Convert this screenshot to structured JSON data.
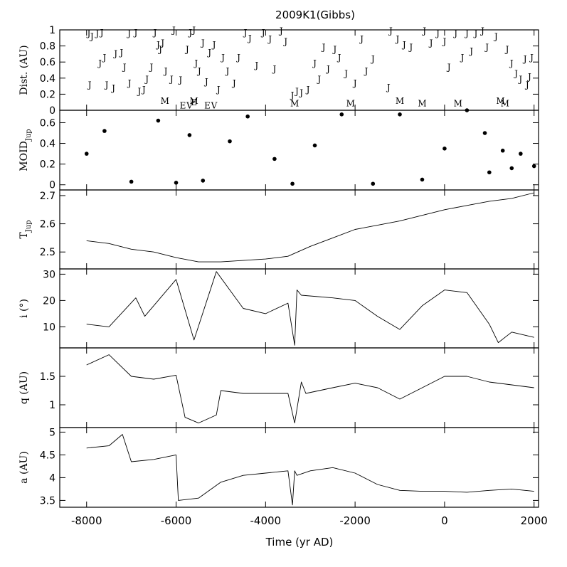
{
  "chart_data": {
    "type": "line",
    "title": "2009K1(Gibbs)",
    "xlabel": "Time (yr AD)",
    "xlim": [
      -8600,
      2100
    ],
    "x_ticks": [
      -8000,
      -6000,
      -4000,
      -2000,
      0,
      2000
    ],
    "panels": [
      {
        "id": "dist",
        "type": "scatter",
        "ylabel": "Dist. (AU)",
        "ylim": [
          0,
          1
        ],
        "y_ticks": [
          "0",
          "0.2",
          "0.4",
          "0.6",
          "0.8",
          "1"
        ],
        "y_tick_values": [
          0,
          0.2,
          0.4,
          0.6,
          0.8,
          1
        ],
        "encounters": [
          {
            "x": -7950,
            "y": 0.92,
            "label": "J"
          },
          {
            "x": -7880,
            "y": 0.88,
            "label": "J"
          },
          {
            "x": -7760,
            "y": 0.92,
            "label": "J"
          },
          {
            "x": -7660,
            "y": 0.93,
            "label": "J"
          },
          {
            "x": -7930,
            "y": 0.28,
            "label": "J"
          },
          {
            "x": -7600,
            "y": 0.62,
            "label": "J"
          },
          {
            "x": -7700,
            "y": 0.55,
            "label": "J"
          },
          {
            "x": -7550,
            "y": 0.28,
            "label": "J"
          },
          {
            "x": -7400,
            "y": 0.24,
            "label": "J"
          },
          {
            "x": -7350,
            "y": 0.67,
            "label": "J"
          },
          {
            "x": -7220,
            "y": 0.68,
            "label": "J"
          },
          {
            "x": -7150,
            "y": 0.5,
            "label": "J"
          },
          {
            "x": -7050,
            "y": 0.92,
            "label": "J"
          },
          {
            "x": -6900,
            "y": 0.93,
            "label": "J"
          },
          {
            "x": -7040,
            "y": 0.3,
            "label": "J"
          },
          {
            "x": -6820,
            "y": 0.2,
            "label": "J"
          },
          {
            "x": -6720,
            "y": 0.22,
            "label": "J"
          },
          {
            "x": -6650,
            "y": 0.35,
            "label": "J"
          },
          {
            "x": -6550,
            "y": 0.5,
            "label": "J"
          },
          {
            "x": -6470,
            "y": 0.93,
            "label": "J"
          },
          {
            "x": -6400,
            "y": 0.78,
            "label": "J"
          },
          {
            "x": -6350,
            "y": 0.72,
            "label": "J"
          },
          {
            "x": -6300,
            "y": 0.8,
            "label": "J"
          },
          {
            "x": -6230,
            "y": 0.45,
            "label": "J"
          },
          {
            "x": -6100,
            "y": 0.35,
            "label": "J"
          },
          {
            "x": -6250,
            "y": 0.08,
            "label": "M"
          },
          {
            "x": -6050,
            "y": 0.96,
            "label": "J"
          },
          {
            "x": -5900,
            "y": 0.34,
            "label": "J"
          },
          {
            "x": -5750,
            "y": 0.72,
            "label": "J"
          },
          {
            "x": -5680,
            "y": 0.93,
            "label": "J"
          },
          {
            "x": -5600,
            "y": 0.96,
            "label": "J"
          },
          {
            "x": -5550,
            "y": 0.55,
            "label": "J"
          },
          {
            "x": -5480,
            "y": 0.45,
            "label": "J"
          },
          {
            "x": -5400,
            "y": 0.8,
            "label": "J"
          },
          {
            "x": -5320,
            "y": 0.32,
            "label": "J"
          },
          {
            "x": -5250,
            "y": 0.68,
            "label": "J"
          },
          {
            "x": -5150,
            "y": 0.78,
            "label": "J"
          },
          {
            "x": -5050,
            "y": 0.22,
            "label": "J"
          },
          {
            "x": -4950,
            "y": 0.62,
            "label": "J"
          },
          {
            "x": -4850,
            "y": 0.45,
            "label": "J"
          },
          {
            "x": -5850,
            "y": 0.02,
            "label": "E"
          },
          {
            "x": -5700,
            "y": 0.02,
            "label": "V"
          },
          {
            "x": -5600,
            "y": 0.06,
            "label": "E"
          },
          {
            "x": -5600,
            "y": 0.08,
            "label": "M"
          },
          {
            "x": -5300,
            "y": 0.02,
            "label": "E"
          },
          {
            "x": -5150,
            "y": 0.02,
            "label": "V"
          },
          {
            "x": -4700,
            "y": 0.3,
            "label": "J"
          },
          {
            "x": -4600,
            "y": 0.62,
            "label": "J"
          },
          {
            "x": -4450,
            "y": 0.93,
            "label": "J"
          },
          {
            "x": -4350,
            "y": 0.86,
            "label": "J"
          },
          {
            "x": -4200,
            "y": 0.52,
            "label": "J"
          },
          {
            "x": -4050,
            "y": 0.93,
            "label": "J"
          },
          {
            "x": -3900,
            "y": 0.85,
            "label": "J"
          },
          {
            "x": -3800,
            "y": 0.48,
            "label": "J"
          },
          {
            "x": -3650,
            "y": 0.95,
            "label": "J"
          },
          {
            "x": -3550,
            "y": 0.82,
            "label": "J"
          },
          {
            "x": -3400,
            "y": 0.15,
            "label": "J"
          },
          {
            "x": -3350,
            "y": 0.05,
            "label": "M"
          },
          {
            "x": -3300,
            "y": 0.2,
            "label": "J"
          },
          {
            "x": -3200,
            "y": 0.18,
            "label": "J"
          },
          {
            "x": -3050,
            "y": 0.22,
            "label": "J"
          },
          {
            "x": -2900,
            "y": 0.55,
            "label": "J"
          },
          {
            "x": -2800,
            "y": 0.35,
            "label": "J"
          },
          {
            "x": -2700,
            "y": 0.75,
            "label": "J"
          },
          {
            "x": -2600,
            "y": 0.48,
            "label": "J"
          },
          {
            "x": -2450,
            "y": 0.72,
            "label": "J"
          },
          {
            "x": -2350,
            "y": 0.62,
            "label": "J"
          },
          {
            "x": -2200,
            "y": 0.42,
            "label": "J"
          },
          {
            "x": -2100,
            "y": 0.05,
            "label": "M"
          },
          {
            "x": -2000,
            "y": 0.3,
            "label": "J"
          },
          {
            "x": -1850,
            "y": 0.85,
            "label": "J"
          },
          {
            "x": -1750,
            "y": 0.45,
            "label": "J"
          },
          {
            "x": -1600,
            "y": 0.6,
            "label": "J"
          },
          {
            "x": -1250,
            "y": 0.25,
            "label": "J"
          },
          {
            "x": -1200,
            "y": 0.95,
            "label": "J"
          },
          {
            "x": -1050,
            "y": 0.85,
            "label": "J"
          },
          {
            "x": -900,
            "y": 0.78,
            "label": "J"
          },
          {
            "x": -750,
            "y": 0.75,
            "label": "J"
          },
          {
            "x": -1000,
            "y": 0.08,
            "label": "M"
          },
          {
            "x": -500,
            "y": 0.05,
            "label": "M"
          },
          {
            "x": -450,
            "y": 0.95,
            "label": "J"
          },
          {
            "x": -300,
            "y": 0.8,
            "label": "J"
          },
          {
            "x": -150,
            "y": 0.92,
            "label": "J"
          },
          {
            "x": 0,
            "y": 0.82,
            "label": "J"
          },
          {
            "x": 100,
            "y": 0.5,
            "label": "J"
          },
          {
            "x": 250,
            "y": 0.92,
            "label": "J"
          },
          {
            "x": 300,
            "y": 0.05,
            "label": "M"
          },
          {
            "x": 400,
            "y": 0.62,
            "label": "J"
          },
          {
            "x": 500,
            "y": 0.92,
            "label": "J"
          },
          {
            "x": 600,
            "y": 0.7,
            "label": "J"
          },
          {
            "x": 700,
            "y": 0.92,
            "label": "J"
          },
          {
            "x": 850,
            "y": 0.95,
            "label": "J"
          },
          {
            "x": 950,
            "y": 0.75,
            "label": "J"
          },
          {
            "x": 1150,
            "y": 0.88,
            "label": "J"
          },
          {
            "x": 1250,
            "y": 0.08,
            "label": "M"
          },
          {
            "x": 1350,
            "y": 0.05,
            "label": "M"
          },
          {
            "x": 1400,
            "y": 0.72,
            "label": "J"
          },
          {
            "x": 1500,
            "y": 0.55,
            "label": "J"
          },
          {
            "x": 1600,
            "y": 0.42,
            "label": "J"
          },
          {
            "x": 1700,
            "y": 0.35,
            "label": "J"
          },
          {
            "x": 1800,
            "y": 0.6,
            "label": "J"
          },
          {
            "x": 1900,
            "y": 0.38,
            "label": "J"
          },
          {
            "x": 1950,
            "y": 0.62,
            "label": "J"
          },
          {
            "x": 1850,
            "y": 0.28,
            "label": "J"
          }
        ]
      },
      {
        "id": "moid",
        "type": "scatter",
        "ylabel": "MOID",
        "ylabel_sub": "Jup",
        "ylim": [
          -0.05,
          0.72
        ],
        "y_ticks": [
          "0",
          "0.2",
          "0.4",
          "0.6"
        ],
        "y_tick_values": [
          0,
          0.2,
          0.4,
          0.6
        ],
        "x": [
          -8000,
          -7600,
          -7000,
          -6400,
          -6000,
          -5700,
          -5400,
          -4800,
          -4400,
          -3800,
          -3400,
          -2900,
          -2300,
          -1600,
          -1000,
          -500,
          0,
          500,
          900,
          1000,
          1300,
          1500,
          1700,
          2000
        ],
        "y": [
          0.3,
          0.52,
          0.03,
          0.62,
          0.02,
          0.48,
          0.04,
          0.42,
          0.66,
          0.25,
          0.01,
          0.38,
          0.68,
          0.01,
          0.68,
          0.05,
          0.35,
          0.72,
          0.5,
          0.12,
          0.33,
          0.16,
          0.3,
          0.18
        ]
      },
      {
        "id": "tjup",
        "type": "line",
        "ylabel": "T",
        "ylabel_sub": "Jup",
        "ylim": [
          2.44,
          2.72
        ],
        "y_ticks": [
          "2.5",
          "2.6",
          "2.7"
        ],
        "y_tick_values": [
          2.5,
          2.6,
          2.7
        ],
        "x": [
          -8000,
          -7500,
          -7000,
          -6500,
          -6000,
          -5500,
          -5000,
          -4500,
          -4000,
          -3500,
          -3000,
          -2500,
          -2000,
          -1500,
          -1000,
          -500,
          0,
          500,
          1000,
          1500,
          2000
        ],
        "y": [
          2.54,
          2.53,
          2.51,
          2.5,
          2.48,
          2.465,
          2.465,
          2.47,
          2.475,
          2.485,
          2.52,
          2.55,
          2.58,
          2.595,
          2.61,
          2.63,
          2.65,
          2.665,
          2.68,
          2.69,
          2.71
        ]
      },
      {
        "id": "incl",
        "type": "line",
        "ylabel": "i (°)",
        "ylim": [
          2,
          32
        ],
        "y_ticks": [
          "10",
          "20",
          "30"
        ],
        "y_tick_values": [
          10,
          20,
          30
        ],
        "x": [
          -8000,
          -7500,
          -6900,
          -6700,
          -6000,
          -5600,
          -5100,
          -4800,
          -4500,
          -4000,
          -3500,
          -3350,
          -3300,
          -3200,
          -2500,
          -2000,
          -1500,
          -1000,
          -500,
          0,
          500,
          1000,
          1200,
          1500,
          2000
        ],
        "y": [
          11,
          10,
          21,
          14,
          28,
          5,
          31,
          24,
          17,
          15,
          19,
          3,
          24,
          22,
          21,
          20,
          14,
          9,
          18,
          24,
          23,
          11,
          4,
          8,
          6
        ]
      },
      {
        "id": "q",
        "type": "line",
        "ylabel": "q (AU)",
        "ylim": [
          0.6,
          2.0
        ],
        "y_ticks": [
          "1",
          "1.5"
        ],
        "y_tick_values": [
          1,
          1.5
        ],
        "x": [
          -8000,
          -7500,
          -7000,
          -6500,
          -6000,
          -5800,
          -5500,
          -5100,
          -5000,
          -4500,
          -4000,
          -3500,
          -3350,
          -3200,
          -3100,
          -2500,
          -2000,
          -1500,
          -1000,
          -500,
          0,
          500,
          1000,
          1500,
          2000
        ],
        "y": [
          1.7,
          1.88,
          1.5,
          1.45,
          1.52,
          0.78,
          0.68,
          0.82,
          1.25,
          1.2,
          1.2,
          1.2,
          0.68,
          1.4,
          1.2,
          1.3,
          1.38,
          1.3,
          1.1,
          1.3,
          1.5,
          1.5,
          1.4,
          1.35,
          1.3
        ]
      },
      {
        "id": "a",
        "type": "line",
        "ylabel": "a (AU)",
        "ylim": [
          3.35,
          5.1
        ],
        "y_ticks": [
          "3.5",
          "4",
          "4.5",
          "5"
        ],
        "y_tick_values": [
          3.5,
          4,
          4.5,
          5
        ],
        "x": [
          -8000,
          -7500,
          -7200,
          -7000,
          -6500,
          -6000,
          -5950,
          -5500,
          -5000,
          -4500,
          -4000,
          -3500,
          -3400,
          -3350,
          -3300,
          -3000,
          -2500,
          -2000,
          -1500,
          -1000,
          -500,
          0,
          500,
          1000,
          1500,
          2000
        ],
        "y": [
          4.65,
          4.7,
          4.95,
          4.35,
          4.4,
          4.5,
          3.5,
          3.55,
          3.9,
          4.05,
          4.1,
          4.15,
          3.4,
          4.15,
          4.05,
          4.15,
          4.22,
          4.1,
          3.85,
          3.72,
          3.7,
          3.7,
          3.68,
          3.72,
          3.75,
          3.7
        ]
      }
    ]
  }
}
